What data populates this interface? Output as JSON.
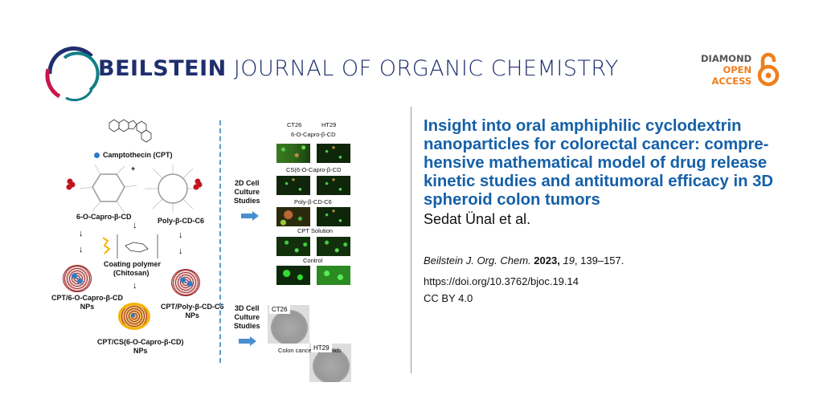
{
  "journal": {
    "name_bold": "BEILSTEIN",
    "name_rest": "JOURNAL OF ORGANIC CHEMISTRY"
  },
  "open_access": {
    "line1": "DIAMOND",
    "line2": "OPEN",
    "line3": "ACCESS",
    "colors": {
      "dark": "#555555",
      "orange": "#f07f1a"
    }
  },
  "article": {
    "title": "Insight into oral amphiphilic cyclodextrin nanoparticles for colorectal cancer: compre­hensive mathematical model of drug re­lease kinetic studies and antitumoral effi­cacy in 3D spheroid colon tumors",
    "authors": "Sedat Ünal et al.",
    "citation": {
      "journal": "Beilstein J. Org. Chem.",
      "year": "2023,",
      "volume": "19",
      "pages": ", 139–157."
    },
    "doi": "https://doi.org/10.3762/bjoc.19.14",
    "license": "CC BY 4.0"
  },
  "figure": {
    "camptothecin": "Camptothecin (CPT)",
    "capro": "6-O-Capro-β-CD",
    "poly": "Poly-β-CD-C6",
    "coating1": "Coating polymer",
    "coating2": "(Chitosan)",
    "np1a": "CPT/6-O-Capro-β-CD",
    "np1b": "NPs",
    "np2a": "CPT/Poly-β-CD-C6",
    "np2b": "NPs",
    "np3a": "CPT/CS(6-O-Capro-β-CD)",
    "np3b": "NPs",
    "studies2d": [
      "2D Cell",
      "Culture",
      "Studies"
    ],
    "studies3d": [
      "3D Cell",
      "Culture",
      "Studies"
    ],
    "col1": "CT26",
    "col2": "HT29",
    "rows": [
      "6-O-Capro-β-CD",
      "CS(6-O-Capro-β-CD",
      "Poly-β-CD-C6",
      "CPT Solution",
      "Control"
    ],
    "spheroids": "Colon cancer spheroids",
    "plus": "+"
  },
  "colors": {
    "title": "#1560a8",
    "navy": "#1f2e6e",
    "arrow": "#4a8fd0"
  }
}
